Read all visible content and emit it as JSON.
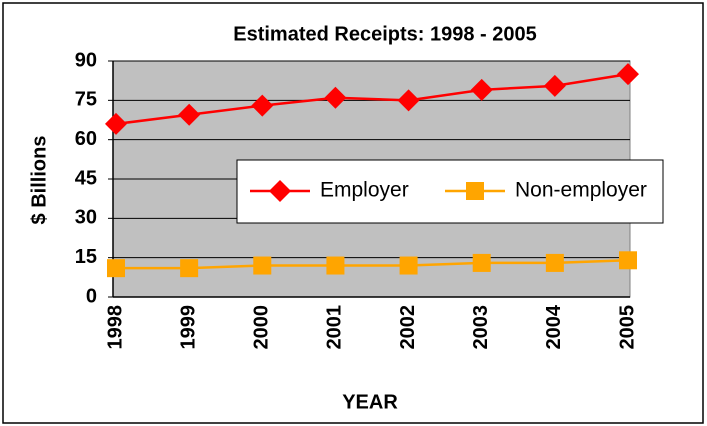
{
  "chart_data": {
    "type": "line",
    "title": "Estimated Receipts: 1998 - 2005",
    "xlabel": "YEAR",
    "ylabel": "$ Billions",
    "categories": [
      "1998",
      "1999",
      "2000",
      "2001",
      "2002",
      "2003",
      "2004",
      "2005"
    ],
    "series": [
      {
        "name": "Employer",
        "color": "#ff0000",
        "marker": "diamond",
        "values": [
          66,
          69.5,
          73,
          76,
          75,
          79,
          80.5,
          85
        ]
      },
      {
        "name": "Non-employer",
        "color": "#ffa500",
        "marker": "square",
        "values": [
          11,
          11,
          12,
          12,
          12,
          13,
          13,
          14
        ]
      }
    ],
    "ylim": [
      0,
      90
    ],
    "yticks": [
      0,
      15,
      30,
      45,
      60,
      75,
      90
    ],
    "grid": true,
    "legend": "center-right"
  }
}
